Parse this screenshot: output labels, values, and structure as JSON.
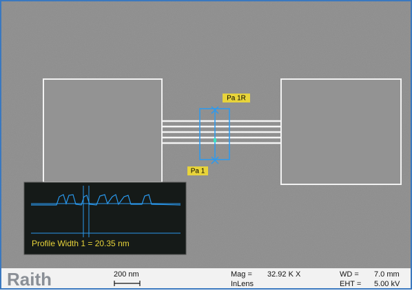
{
  "markers": {
    "top": "Pa 1R",
    "bottom": "Pa 1"
  },
  "profile": {
    "text": "Profile Width 1 = 20.35 nm"
  },
  "footer": {
    "brand": "Raith",
    "scale": "200 nm",
    "mag_label": "Mag =",
    "mag_value": "32.92 K X",
    "detector": "InLens",
    "wd_label": "WD =",
    "wd_value": "7.0 mm",
    "eht_label": "EHT =",
    "eht_value": "5.00 kV"
  }
}
